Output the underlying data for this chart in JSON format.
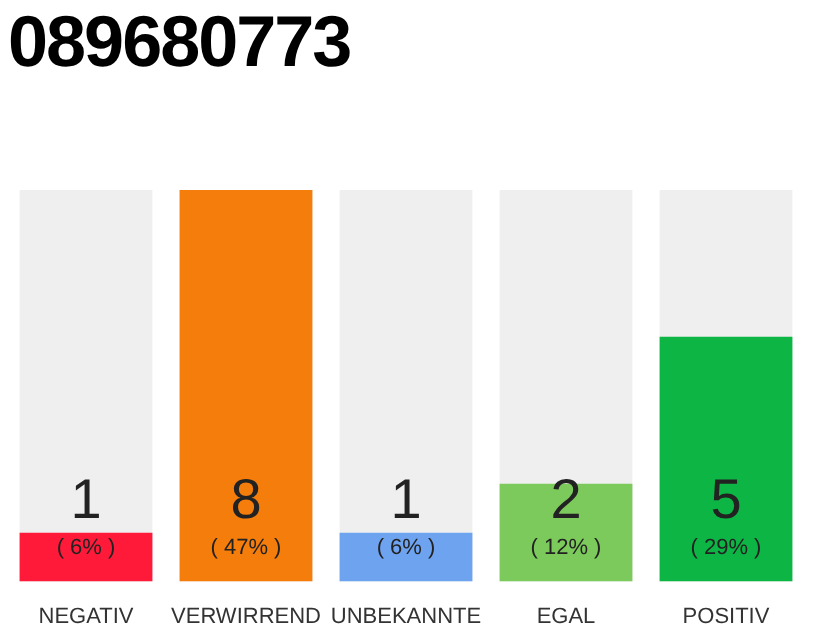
{
  "chart_data": {
    "type": "bar",
    "title": "089680773",
    "categories": [
      "NEGATIV",
      "VERWIRREND",
      "UNBEKANNTE",
      "EGAL",
      "POSITIV"
    ],
    "values": [
      1,
      8,
      1,
      2,
      5
    ],
    "colors": [
      "#ff1a3a",
      "#f57d0c",
      "#6ea3f0",
      "#7cc95c",
      "#0db545"
    ],
    "ylim": [
      0,
      8
    ],
    "tick_labels": "x",
    "grid": false,
    "legend": false,
    "data_labels": true,
    "annotations": [
      "( 6% )",
      "( 47% )",
      "( 6% )",
      "( 12% )",
      "( 29% )"
    ]
  }
}
